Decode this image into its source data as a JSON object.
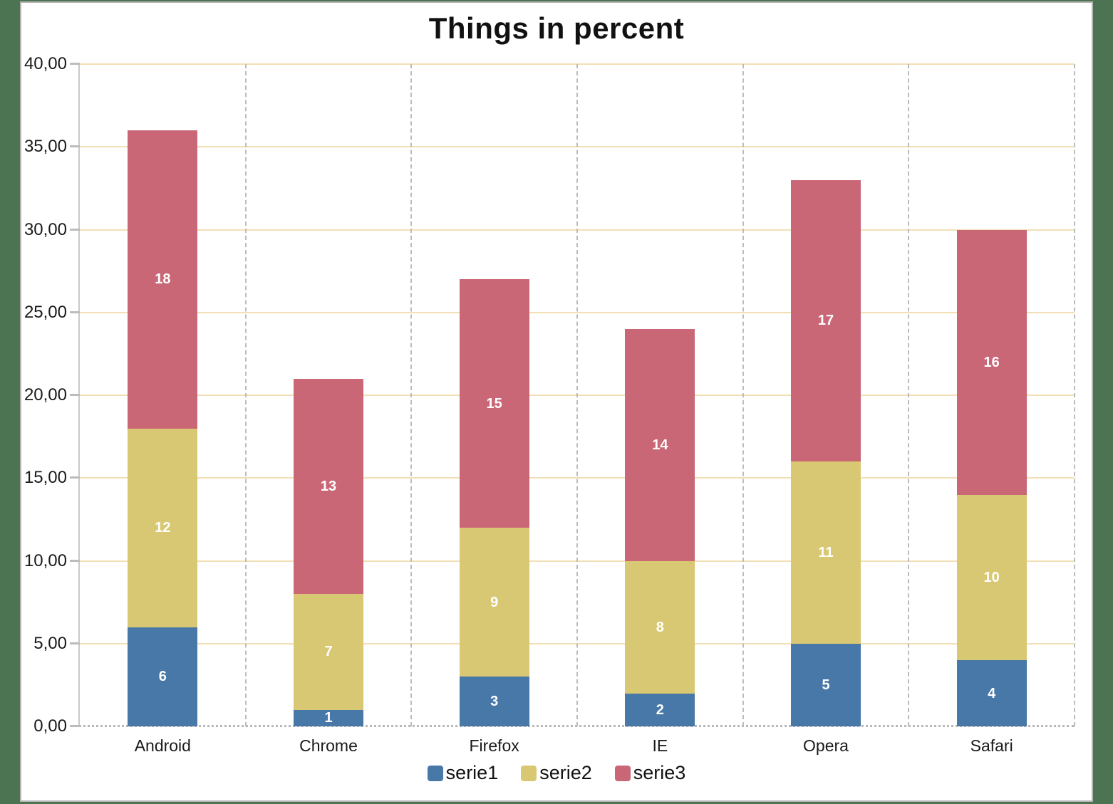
{
  "page": {
    "background_color": "#4C7452",
    "surface_color": "#FFFFFF",
    "border_color": "#B5B5B5"
  },
  "chart_data": {
    "type": "bar",
    "stacked": true,
    "title": "Things in percent",
    "categories": [
      "Android",
      "Chrome",
      "Firefox",
      "IE",
      "Opera",
      "Safari"
    ],
    "series": [
      {
        "name": "serie1",
        "color": "#4878A8",
        "values": [
          6,
          1,
          3,
          2,
          5,
          4
        ]
      },
      {
        "name": "serie2",
        "color": "#D9C873",
        "values": [
          12,
          7,
          9,
          8,
          11,
          10
        ]
      },
      {
        "name": "serie3",
        "color": "#CA6777",
        "values": [
          18,
          13,
          15,
          14,
          17,
          16
        ]
      }
    ],
    "stack_totals": [
      36,
      21,
      27,
      24,
      33,
      30
    ],
    "xlabel": "",
    "ylabel": "",
    "ylim": [
      0,
      40
    ],
    "ytick_step": 5,
    "ytick_labels": [
      "0,00",
      "5,00",
      "10,00",
      "15,00",
      "20,00",
      "25,00",
      "30,00",
      "35,00",
      "40,00"
    ],
    "value_labels": "white bold integers centered in each segment",
    "legend_position": "bottom-center",
    "grid": {
      "horizontal": true,
      "horizontal_color": "#F3DFB5",
      "vertical": true,
      "vertical_style": "dashed",
      "vertical_color": "#BCBCBC",
      "baseline_style": "dotted",
      "axis_color": "#C9C9C9"
    }
  }
}
